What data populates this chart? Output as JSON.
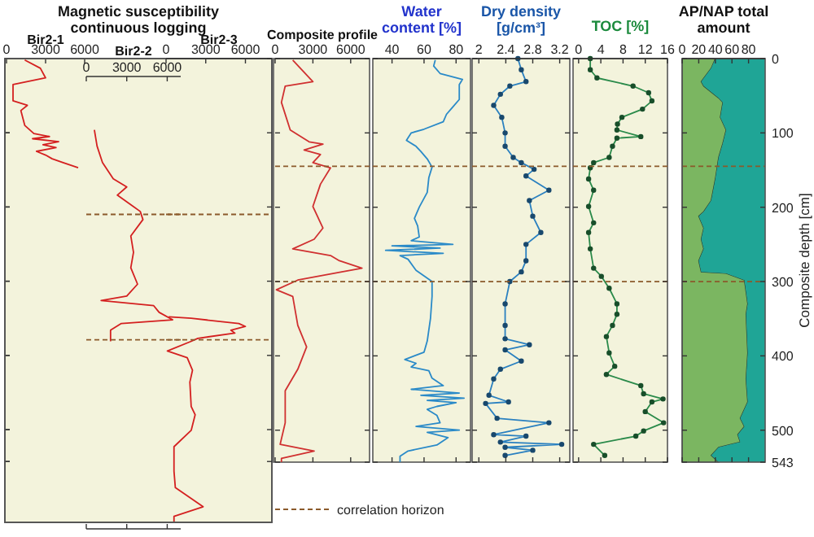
{
  "chart_data": [
    {
      "type": "line",
      "orientation": "horizontal",
      "title": "Magnetic susceptibility continuous logging",
      "xlabel": "Bir2-1",
      "xlim": [
        0,
        6000
      ],
      "xticks": [
        0,
        3000,
        6000
      ],
      "ylim": [
        625,
        0
      ],
      "yticks": [
        0,
        100,
        200,
        300,
        400,
        500,
        543
      ],
      "tick_labels": "x",
      "series": [
        {
          "color": "#d42020",
          "x": [
            2,
            13,
            26,
            35,
            57,
            63,
            70,
            90,
            101,
            105,
            108,
            112,
            116,
            120,
            125,
            130,
            135,
            140,
            147
          ],
          "values": [
            1400,
            2600,
            3000,
            500,
            500,
            1600,
            1100,
            1400,
            2100,
            3300,
            2000,
            4000,
            2800,
            3800,
            2300,
            3000,
            3500,
            4300,
            5500
          ]
        }
      ]
    },
    {
      "type": "line",
      "orientation": "horizontal",
      "xlabel": "Bir2-2",
      "xlim": [
        0,
        7000
      ],
      "xticks": [
        0,
        3000,
        6000
      ],
      "ylim": [
        625,
        0
      ],
      "yticks": [
        0,
        100,
        200,
        300,
        400,
        500,
        543
      ],
      "tick_labels": "x",
      "ref_lines": [
        {
          "axis": "y",
          "value": 210,
          "color": "#8b5a2b",
          "line_style": "dashed"
        },
        {
          "axis": "y",
          "value": 379,
          "color": "#8b5a2b",
          "line_style": "dashed"
        }
      ],
      "series": [
        {
          "color": "#d42020",
          "x": [
            96,
            118,
            140,
            162,
            173,
            184,
            206,
            217,
            239,
            261,
            282,
            304,
            320,
            326,
            333,
            342,
            352,
            357,
            366,
            374,
            381
          ],
          "values": [
            600,
            800,
            1200,
            2000,
            3000,
            2300,
            4000,
            4200,
            3300,
            3500,
            3300,
            3800,
            3000,
            1100,
            5000,
            5400,
            6400,
            2600,
            1800,
            1800,
            1800
          ]
        }
      ]
    },
    {
      "type": "line",
      "orientation": "horizontal",
      "xlabel": "Bir2-3",
      "xlim": [
        0,
        8000
      ],
      "xticks": [
        0,
        3000,
        6000
      ],
      "ylim": [
        625,
        0
      ],
      "yticks": [
        0,
        100,
        200,
        300,
        400,
        500,
        543
      ],
      "tick_labels": "x",
      "ref_lines": [
        {
          "axis": "y",
          "value": 210,
          "color": "#8b5a2b",
          "line_style": "dashed"
        },
        {
          "axis": "y",
          "value": 379,
          "color": "#8b5a2b",
          "line_style": "dashed"
        }
      ],
      "series": [
        {
          "color": "#d42020",
          "x": [
            348,
            350,
            357,
            361,
            366,
            370,
            377,
            381,
            394,
            403,
            420,
            436,
            469,
            480,
            501,
            523,
            556,
            578,
            604,
            617,
            624
          ],
          "values": [
            200,
            1900,
            5500,
            6000,
            4900,
            5200,
            2400,
            1900,
            100,
            1600,
            2000,
            1800,
            1900,
            2200,
            1900,
            600,
            600,
            700,
            2800,
            600,
            600
          ]
        }
      ]
    },
    {
      "type": "line",
      "orientation": "horizontal",
      "xlabel": "Composite profile",
      "xlim": [
        0,
        7500
      ],
      "xticks": [
        0,
        3000,
        6000
      ],
      "ylim": [
        543,
        0
      ],
      "yticks": [
        0,
        100,
        200,
        300,
        400,
        500,
        543
      ],
      "tick_labels": "x",
      "annotations": [
        "correlation horizon"
      ],
      "ref_lines": [
        {
          "axis": "y",
          "value": 145,
          "color": "#8b5a2b",
          "line_style": "dashed"
        },
        {
          "axis": "y",
          "value": 300,
          "color": "#8b5a2b",
          "line_style": "dashed"
        }
      ],
      "series": [
        {
          "color": "#d03030",
          "x": [
            2,
            31,
            37,
            59,
            96,
            112,
            115,
            123,
            129,
            140,
            147,
            169,
            199,
            228,
            243,
            256,
            265,
            272,
            282,
            287,
            298,
            311,
            320,
            359,
            388,
            418,
            447,
            490,
            519,
            528,
            538,
            543
          ],
          "values": [
            1400,
            3000,
            800,
            500,
            1200,
            2700,
            3800,
            2300,
            3600,
            3000,
            4400,
            3600,
            3000,
            3800,
            3100,
            1400,
            4400,
            5100,
            6900,
            5300,
            1800,
            100,
            1400,
            1800,
            2500,
            1800,
            800,
            800,
            400,
            3100,
            500,
            500
          ]
        }
      ]
    },
    {
      "type": "line",
      "orientation": "horizontal",
      "title": "Water content [%]",
      "xlim": [
        28,
        89
      ],
      "xticks": [
        40,
        60,
        80
      ],
      "ylim": [
        543,
        0
      ],
      "yticks": [
        0,
        100,
        200,
        300,
        400,
        500,
        543
      ],
      "tick_labels": "x",
      "ref_lines": [
        {
          "axis": "y",
          "value": 145,
          "color": "#8b5a2b",
          "line_style": "dashed"
        },
        {
          "axis": "y",
          "value": 300,
          "color": "#8b5a2b",
          "line_style": "dashed"
        }
      ],
      "series": [
        {
          "color": "#2a8ac8",
          "x": [
            2,
            10,
            20,
            28,
            35,
            55,
            65,
            75,
            85,
            95,
            100,
            110,
            118,
            125,
            135,
            146,
            160,
            180,
            200,
            215,
            225,
            240,
            245,
            250,
            252,
            255,
            258,
            262,
            265,
            270,
            285,
            300,
            320,
            350,
            380,
            395,
            405,
            410,
            415,
            420,
            430,
            440,
            445,
            450,
            453,
            457,
            460,
            463,
            468,
            472,
            480,
            490,
            495,
            500,
            503,
            510,
            520,
            528,
            535,
            543
          ],
          "values": [
            67,
            66,
            70,
            84,
            82,
            82,
            78,
            74,
            72,
            60,
            52,
            49,
            55,
            58,
            62,
            65,
            63,
            62,
            57,
            54,
            56,
            57,
            52,
            78,
            40,
            70,
            36,
            72,
            45,
            50,
            55,
            65,
            65,
            64,
            62,
            60,
            48,
            55,
            52,
            63,
            65,
            72,
            52,
            82,
            58,
            85,
            62,
            80,
            68,
            62,
            68,
            70,
            55,
            82,
            62,
            75,
            68,
            50,
            45,
            45
          ]
        }
      ]
    },
    {
      "type": "line",
      "orientation": "horizontal",
      "title": "Dry density [g/cm³]",
      "xlim": [
        1.9,
        3.35
      ],
      "xticks": [
        2,
        2.4,
        2.8,
        3.2
      ],
      "ylim": [
        543,
        0
      ],
      "yticks": [
        0,
        100,
        200,
        300,
        400,
        500,
        543
      ],
      "tick_labels": "x",
      "marker": "circle",
      "ref_lines": [
        {
          "axis": "y",
          "value": 145,
          "color": "#8b5a2b",
          "line_style": "dashed"
        },
        {
          "axis": "y",
          "value": 300,
          "color": "#8b5a2b",
          "line_style": "dashed"
        }
      ],
      "series": [
        {
          "color": "#2a80c0",
          "x": [
            0,
            15,
            31,
            37,
            48,
            63,
            79,
            100,
            118,
            133,
            140,
            149,
            158,
            177,
            191,
            212,
            234,
            250,
            272,
            287,
            300,
            330,
            359,
            377,
            385,
            392,
            407,
            418,
            431,
            453,
            462,
            464,
            484,
            490,
            506,
            508,
            516,
            519,
            523,
            527,
            534
          ],
          "values": [
            2.58,
            2.63,
            2.7,
            2.46,
            2.32,
            2.22,
            2.34,
            2.39,
            2.39,
            2.51,
            2.63,
            2.82,
            2.7,
            3.04,
            2.75,
            2.8,
            2.92,
            2.7,
            2.7,
            2.63,
            2.46,
            2.39,
            2.39,
            2.39,
            2.75,
            2.39,
            2.63,
            2.32,
            2.22,
            2.15,
            2.44,
            2.1,
            2.27,
            3.04,
            2.22,
            2.7,
            2.32,
            3.23,
            2.39,
            2.8,
            2.39
          ]
        }
      ]
    },
    {
      "type": "line",
      "orientation": "horizontal",
      "title": "TOC [%]",
      "xlim": [
        -1,
        16
      ],
      "xticks": [
        0,
        4,
        8,
        12,
        16
      ],
      "ylim": [
        543,
        0
      ],
      "yticks": [
        0,
        100,
        200,
        300,
        400,
        500,
        543
      ],
      "tick_labels": "x",
      "marker": "circle",
      "ref_lines": [
        {
          "axis": "y",
          "value": 145,
          "color": "#8b5a2b",
          "line_style": "dashed"
        },
        {
          "axis": "y",
          "value": 300,
          "color": "#8b5a2b",
          "line_style": "dashed"
        }
      ],
      "series": [
        {
          "color": "#2a8a4a",
          "x": [
            0,
            15,
            26,
            37,
            46,
            57,
            68,
            79,
            88,
            96,
            105,
            107,
            118,
            133,
            140,
            147,
            162,
            177,
            199,
            221,
            234,
            256,
            282,
            293,
            309,
            330,
            344,
            359,
            374,
            396,
            414,
            425,
            440,
            451,
            458,
            462,
            475,
            490,
            501,
            508,
            519,
            534
          ],
          "values": [
            2.1,
            2.1,
            3.3,
            9.8,
            12.6,
            13.2,
            11.5,
            7.8,
            7,
            6.9,
            11.2,
            6.9,
            6.1,
            5.5,
            2.7,
            2.1,
            1.8,
            2.7,
            1.8,
            2.7,
            1.8,
            2.1,
            2.7,
            4.1,
            5.5,
            6.9,
            6.9,
            6.1,
            5,
            5.5,
            6.5,
            5,
            11.2,
            11.7,
            15.2,
            13.2,
            12,
            15.3,
            11.7,
            10.3,
            2.7,
            4.7
          ]
        }
      ]
    },
    {
      "type": "area",
      "orientation": "horizontal",
      "stacked": true,
      "title": "AP/NAP total amount",
      "ylabel": "Composite depth [cm]",
      "xlim": [
        0,
        100
      ],
      "xticks": [
        0,
        20,
        40,
        60,
        80
      ],
      "ylim": [
        543,
        0
      ],
      "yticks": [
        0,
        100,
        200,
        300,
        400,
        500,
        543
      ],
      "ref_lines": [
        {
          "axis": "y",
          "value": 145,
          "color": "#8b5a2b",
          "line_style": "dashed"
        },
        {
          "axis": "y",
          "value": 300,
          "color": "#8b5a2b",
          "line_style": "dashed"
        }
      ],
      "series": [
        {
          "color": "#7bb661",
          "x": [
            0,
            13,
            31,
            37,
            53,
            59,
            79,
            96,
            114,
            133,
            162,
            191,
            206,
            212,
            228,
            243,
            256,
            272,
            287,
            289,
            298,
            330,
            344,
            396,
            431,
            462,
            484,
            495,
            506,
            516,
            523,
            534,
            543
          ],
          "values": [
            40,
            35,
            23,
            26,
            44,
            49,
            46,
            53,
            49,
            44,
            40,
            35,
            26,
            20,
            26,
            23,
            26,
            20,
            23,
            53,
            75,
            79,
            77,
            79,
            77,
            79,
            70,
            75,
            67,
            70,
            44,
            35,
            44
          ]
        },
        {
          "color": "#1fa596",
          "x": [
            0,
            13,
            31,
            37,
            53,
            59,
            79,
            96,
            114,
            133,
            162,
            191,
            206,
            212,
            228,
            243,
            256,
            272,
            287,
            289,
            298,
            330,
            344,
            396,
            431,
            462,
            484,
            495,
            506,
            516,
            523,
            534,
            543
          ],
          "values": [
            60,
            65,
            77,
            74,
            56,
            51,
            54,
            47,
            51,
            56,
            60,
            65,
            74,
            80,
            74,
            77,
            74,
            80,
            77,
            47,
            25,
            21,
            23,
            21,
            23,
            21,
            30,
            25,
            33,
            30,
            56,
            65,
            56
          ]
        }
      ]
    }
  ]
}
